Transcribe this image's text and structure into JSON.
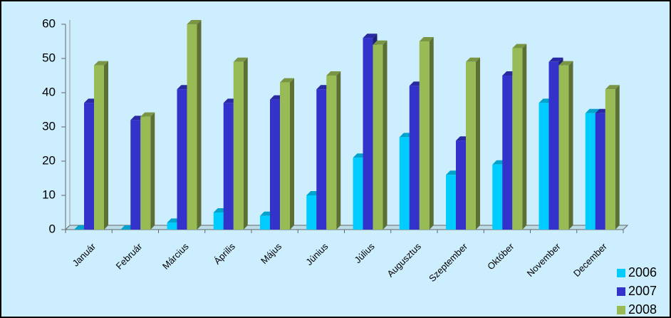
{
  "chart_data": {
    "type": "bar3d",
    "categories": [
      "Január",
      "Február",
      "Március",
      "Április",
      "Május",
      "Június",
      "Július",
      "Augusztus",
      "Szeptember",
      "Október",
      "November",
      "December"
    ],
    "series": [
      {
        "name": "2006",
        "color": "#00ccff",
        "values": [
          0,
          0,
          2,
          5,
          4,
          10,
          21,
          27,
          16,
          19,
          37,
          34
        ]
      },
      {
        "name": "2007",
        "color": "#3333cc",
        "values": [
          37,
          32,
          41,
          37,
          38,
          41,
          56,
          42,
          26,
          45,
          49,
          34
        ]
      },
      {
        "name": "2008",
        "color": "#99bb55",
        "values": [
          48,
          33,
          60,
          49,
          43,
          45,
          54,
          55,
          49,
          53,
          48,
          41
        ]
      }
    ],
    "ylim": [
      0,
      60
    ],
    "yticks": [
      0,
      10,
      20,
      30,
      40,
      50,
      60
    ],
    "grid": false,
    "legend": "bottom-right"
  }
}
